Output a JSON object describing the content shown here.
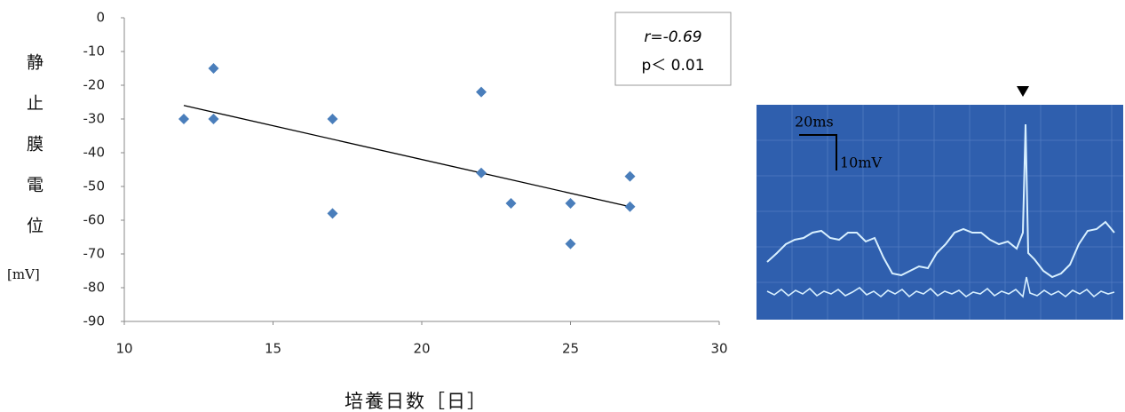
{
  "chart_data": {
    "type": "scatter",
    "y_label": "静止膜電位",
    "y_unit": "[mV]",
    "x_label": "培養日数［日］",
    "annotations": [
      "r=-0.69",
      "p＜ 0.01"
    ],
    "color": "#4a7ebb",
    "x": [
      12,
      13,
      13,
      17,
      17,
      22,
      22,
      23,
      25,
      25,
      27,
      27
    ],
    "y": [
      -30,
      -15,
      -30,
      -30,
      -58,
      -22,
      -46,
      -55,
      -55,
      -67,
      -47,
      -56
    ],
    "trendline": {
      "x": [
        12,
        27
      ],
      "y": [
        -26,
        -56
      ]
    },
    "xlim": [
      10,
      30
    ],
    "xticks": [
      10,
      15,
      20,
      25,
      30
    ],
    "ylim": [
      -90,
      0
    ],
    "yticks": [
      0,
      -10,
      -20,
      -30,
      -40,
      -50,
      -60,
      -70,
      -80,
      -90
    ],
    "scope_labels": {
      "time": "20ms",
      "voltage": "10mV"
    }
  }
}
